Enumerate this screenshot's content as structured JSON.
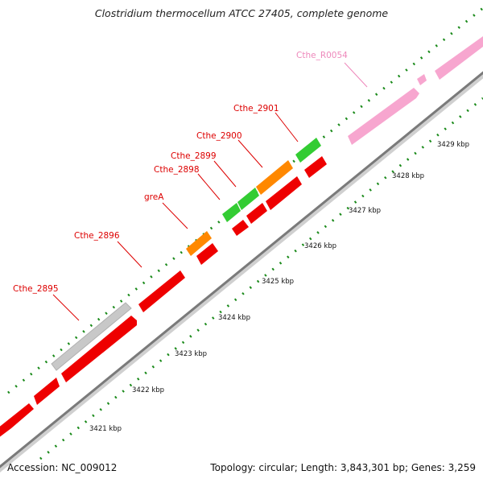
{
  "title": "Clostridium thermocellum ATCC 27405, complete genome",
  "footer": {
    "accession": "Accession: NC_009012",
    "summary": "Topology: circular; Length: 3,843,301 bp; Genes: 3,259"
  },
  "colors": {
    "cds_forward": "#ee0000",
    "cds_reverse_green": "#33cc33",
    "cds_reverse_orange": "#ff8800",
    "pseudo": "#c8c8c8",
    "rna": "#f7a6cf",
    "label_red": "#dd0000",
    "label_pink": "#ee88bb",
    "tick_green": "#1a7a1a",
    "backbone": "#888888"
  },
  "kbp_labels": [
    "3421 kbp",
    "3422 kbp",
    "3423 kbp",
    "3424 kbp",
    "3425 kbp",
    "3426 kbp",
    "3427 kbp",
    "3428 kbp",
    "3429 kbp"
  ],
  "gene_labels": [
    "Cthe_2895",
    "Cthe_2896",
    "greA",
    "Cthe_2898",
    "Cthe_2899",
    "Cthe_2900",
    "Cthe_2901",
    "Cthe_R0054"
  ]
}
